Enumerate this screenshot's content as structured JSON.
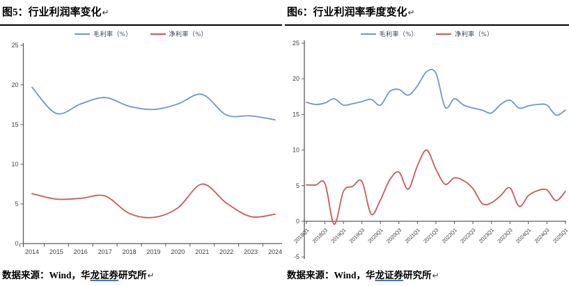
{
  "accent_colors": {
    "gross_margin_blue": "#6D96CB",
    "net_margin_red": "#C85A58",
    "underline_blue": "#4472C4"
  },
  "panels": [
    {
      "title": "图5：行业利润率变化",
      "return_mark": "↵",
      "legend": [
        {
          "label": "毛利率（%）",
          "color": "#6D96CB"
        },
        {
          "label": "净利率（%）",
          "color": "#C85A58"
        }
      ],
      "source": {
        "prefix": "数据来源：Wind，华",
        "underlined": "龙证券",
        "suffix": "研究所",
        "return_mark": "↵"
      }
    },
    {
      "title": "图6：行业利润率季度变化",
      "return_mark": "↵",
      "legend": [
        {
          "label": "毛利率（%）",
          "color": "#6D96CB"
        },
        {
          "label": "净利率（%）",
          "color": "#C85A58"
        }
      ],
      "source": {
        "prefix": "数据来源：Wind，华",
        "underlined": "龙证券",
        "suffix": "研究所",
        "return_mark": "↵"
      }
    }
  ],
  "chart_data": [
    {
      "type": "line",
      "title": "图5：行业利润率变化",
      "categories": [
        "2014",
        "2015",
        "2016",
        "2017",
        "2018",
        "2019",
        "2020",
        "2021",
        "2022",
        "2023",
        "2024"
      ],
      "series": [
        {
          "name": "毛利率（%）",
          "color": "#6D96CB",
          "values": [
            19.7,
            16.4,
            17.6,
            18.4,
            17.3,
            16.9,
            17.6,
            18.8,
            16.2,
            16.1,
            15.6
          ]
        },
        {
          "name": "净利率（%）",
          "color": "#C85A58",
          "values": [
            6.3,
            5.6,
            5.7,
            6.0,
            3.8,
            3.3,
            4.5,
            7.5,
            5.1,
            3.4,
            3.7
          ]
        }
      ],
      "ylim": [
        0,
        25
      ],
      "yticks": [
        0,
        5,
        10,
        15,
        20,
        25
      ],
      "grid": false,
      "legend_position": "top"
    },
    {
      "type": "line",
      "title": "图6：行业利润率季度变化",
      "categories": [
        "2018Q1",
        "2018Q2",
        "2018Q3",
        "2018Q4",
        "2019Q1",
        "2019Q2",
        "2019Q3",
        "2019Q4",
        "2020Q1",
        "2020Q2",
        "2020Q3",
        "2020Q4",
        "2021Q1",
        "2021Q2",
        "2021Q3",
        "2021Q4",
        "2022Q1",
        "2022Q2",
        "2022Q3",
        "2022Q4",
        "2023Q1",
        "2023Q2",
        "2023Q3",
        "2023Q4",
        "2024Q1",
        "2024Q2",
        "2024Q3",
        "2024Q4",
        "2025Q1"
      ],
      "xtick_every": 2,
      "xtick_labels": [
        "2018Q1",
        "2018Q3",
        "2019Q1",
        "2019Q3",
        "2020Q1",
        "2020Q3",
        "2021Q1",
        "2021Q3",
        "2022Q1",
        "2022Q3",
        "2023Q1",
        "2023Q3",
        "2024Q1",
        "2024Q3",
        "2025Q1"
      ],
      "series": [
        {
          "name": "毛利率（%）",
          "color": "#6D96CB",
          "values": [
            16.7,
            16.4,
            16.6,
            17.2,
            16.3,
            16.5,
            16.8,
            17.1,
            16.3,
            18.2,
            18.5,
            17.7,
            19.0,
            21.0,
            20.8,
            16.0,
            17.2,
            16.3,
            15.9,
            15.6,
            15.2,
            16.4,
            17.0,
            15.9,
            16.2,
            16.4,
            16.3,
            14.9,
            15.6
          ]
        },
        {
          "name": "净利率（%）",
          "color": "#C85A58",
          "values": [
            5.1,
            5.1,
            5.3,
            -0.4,
            4.2,
            4.9,
            5.6,
            1.0,
            3.0,
            5.8,
            6.9,
            4.5,
            7.8,
            10.0,
            7.3,
            5.2,
            6.1,
            5.7,
            4.6,
            2.5,
            2.6,
            3.6,
            4.7,
            2.1,
            3.6,
            4.3,
            4.4,
            2.9,
            4.2
          ]
        }
      ],
      "ylim": [
        -5,
        25
      ],
      "yticks": [
        -5,
        0,
        5,
        10,
        15,
        20,
        25
      ],
      "grid": false,
      "legend_position": "top"
    }
  ]
}
